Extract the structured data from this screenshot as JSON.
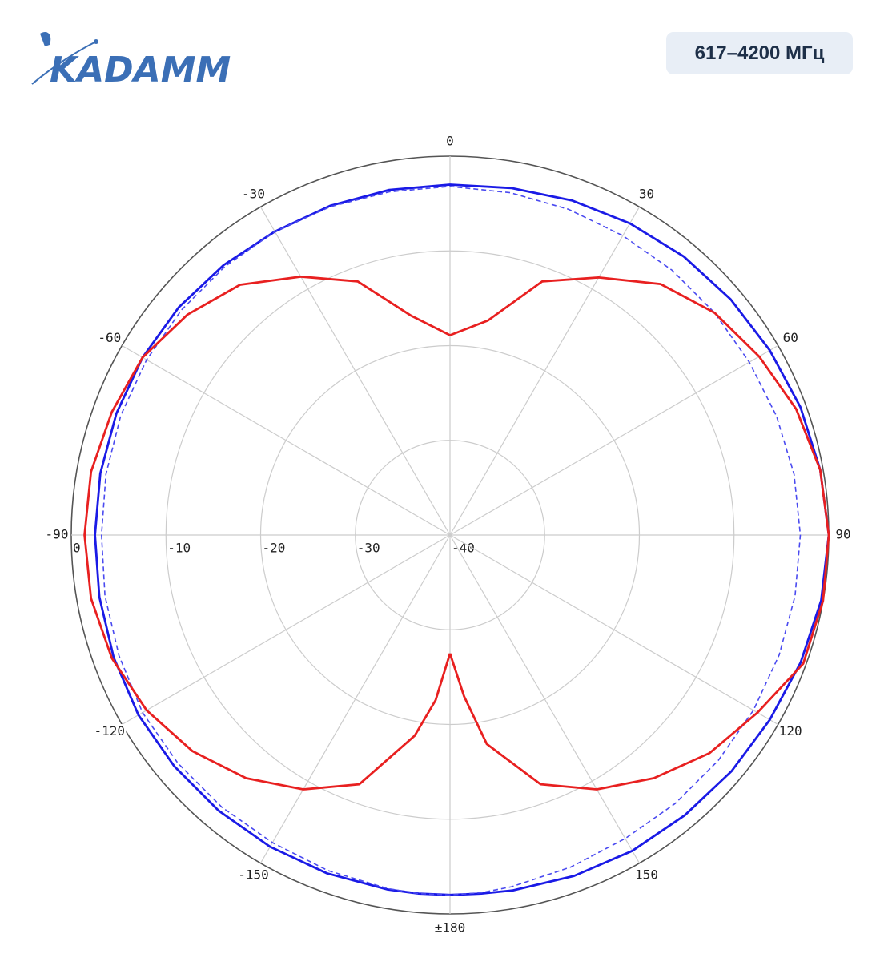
{
  "header": {
    "brand": "KADAMM",
    "badge": "617–4200 МГц"
  },
  "chart_data": {
    "type": "polar",
    "x": [
      -180,
      -175,
      -170,
      -160,
      -150,
      -140,
      -130,
      -120,
      -110,
      -100,
      -90,
      -80,
      -70,
      -60,
      -50,
      -40,
      -30,
      -20,
      -10,
      0,
      10,
      20,
      30,
      40,
      50,
      60,
      70,
      80,
      90,
      100,
      110,
      120,
      130,
      140,
      150,
      160,
      170,
      175,
      180
    ],
    "series": [
      {
        "color": "#1a1ae6",
        "linestyle": "solid",
        "values": [
          -2,
          -2,
          -2,
          -2,
          -2,
          -2,
          -2,
          -2,
          -2.2,
          -2.4,
          -2.5,
          -2.5,
          -2.5,
          -2.5,
          -2.6,
          -2.8,
          -3,
          -3,
          -3,
          -3,
          -2.8,
          -2.4,
          -2,
          -1.6,
          -1.3,
          -1,
          -0.6,
          -0.3,
          0,
          -0.2,
          -0.6,
          -1,
          -1.2,
          -1.4,
          -1.5,
          -1.7,
          -1.9,
          -2,
          -2
        ]
      },
      {
        "color": "#4a4af0",
        "linestyle": "dashed",
        "values": [
          -2,
          -2,
          -2.1,
          -2.3,
          -2.5,
          -2.5,
          -2.5,
          -2.5,
          -2.8,
          -3,
          -3.2,
          -3.1,
          -3,
          -3,
          -3,
          -3,
          -3,
          -3.1,
          -3.2,
          -3.2,
          -3.3,
          -3.4,
          -3.5,
          -3.5,
          -3.5,
          -3.5,
          -3.3,
          -3.1,
          -3,
          -3,
          -3,
          -3,
          -3,
          -3,
          -3,
          -2.7,
          -2.3,
          -2.1,
          -2
        ]
      },
      {
        "color": "#e82020",
        "linestyle": "solid",
        "values": [
          -27.5,
          -22.5,
          -18.5,
          -12,
          -9,
          -6.5,
          -4.5,
          -3,
          -2,
          -1.5,
          -1.4,
          -1.5,
          -2,
          -2.5,
          -3.8,
          -5.5,
          -8.5,
          -11.5,
          -16.5,
          -18.9,
          -17,
          -11.5,
          -8.6,
          -5.4,
          -3.5,
          -2.3,
          -1.1,
          -0.3,
          0,
          0,
          -0.3,
          -2.5,
          -4.2,
          -6.5,
          -9,
          -12,
          -17.6,
          -22.9,
          -27.5
        ]
      }
    ],
    "rlim": [
      -40,
      0
    ],
    "rticks": [
      0,
      -10,
      -20,
      -30,
      -40
    ],
    "xticks": [
      0,
      30,
      60,
      90,
      120,
      150,
      {
        "value": 180,
        "label": "±180"
      },
      -150,
      -120,
      -90,
      -60,
      -30
    ],
    "grid": true
  }
}
